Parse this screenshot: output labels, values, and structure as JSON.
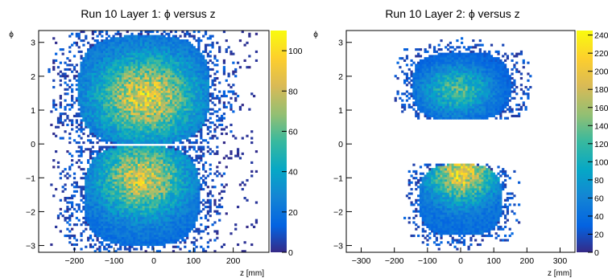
{
  "chart_data": [
    {
      "type": "heatmap",
      "title": "Run 10 Layer 1: ϕ versus z",
      "xlabel": "z [mm]",
      "ylabel": "ϕ",
      "xlim": [
        -290,
        290
      ],
      "ylim": [
        -3.2,
        3.35
      ],
      "xticks": [
        -200,
        -100,
        0,
        100,
        200
      ],
      "yticks": [
        -3,
        -2,
        -1,
        0,
        1,
        2,
        3
      ],
      "colorbar": {
        "range": [
          0,
          110
        ],
        "ticks": [
          0,
          20,
          40,
          60,
          80,
          100
        ],
        "tick_labels": [
          "0",
          "20",
          "40",
          "60",
          "80",
          "100"
        ]
      },
      "blobs": [
        {
          "phi_range": [
            0.0,
            3.2
          ],
          "z_range": [
            -190,
            140
          ],
          "peak_counts": 105,
          "peak_phi": 1.4,
          "peak_z": -20
        },
        {
          "phi_range": [
            -3.0,
            -0.05
          ],
          "z_range": [
            -175,
            115
          ],
          "peak_counts": 100,
          "peak_phi": -1.0,
          "peak_z": -30
        }
      ],
      "gap_phi": [
        -0.05,
        0.0
      ]
    },
    {
      "type": "heatmap",
      "title": "Run 10 Layer 2: ϕ versus z",
      "xlabel": "z [mm]",
      "ylabel": "ϕ",
      "xlim": [
        -345,
        345
      ],
      "ylim": [
        -3.2,
        3.35
      ],
      "xticks": [
        -300,
        -200,
        -100,
        0,
        100,
        200,
        300
      ],
      "yticks": [
        -3,
        -2,
        -1,
        0,
        1,
        2,
        3
      ],
      "colorbar": {
        "range": [
          0,
          245
        ],
        "ticks": [
          0,
          20,
          40,
          60,
          80,
          100,
          120,
          140,
          160,
          180,
          200,
          220,
          240
        ],
        "tick_labels": [
          "0",
          "20",
          "40",
          "60",
          "80",
          "100",
          "120",
          "140",
          "160",
          "180",
          "200",
          "220",
          "240"
        ]
      },
      "blobs": [
        {
          "phi_range": [
            0.7,
            2.7
          ],
          "z_range": [
            -145,
            150
          ],
          "peak_counts": 150,
          "peak_phi": 1.6,
          "peak_z": -10
        },
        {
          "phi_range": [
            -2.7,
            -0.6
          ],
          "z_range": [
            -125,
            125
          ],
          "peak_counts": 240,
          "peak_phi": -0.9,
          "peak_z": 5
        }
      ],
      "gap_phi": [
        -0.6,
        0.7
      ]
    }
  ]
}
